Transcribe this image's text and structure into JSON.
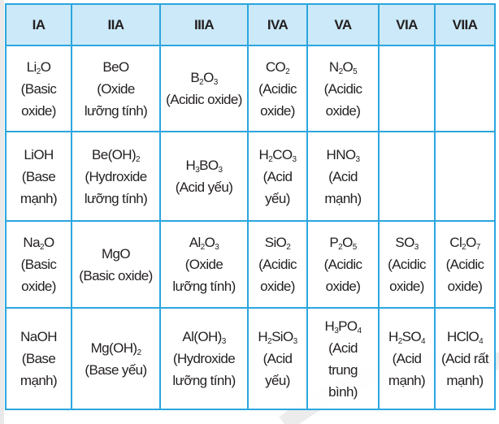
{
  "colors": {
    "border": "#2ba6df",
    "header_bg": "#cbe9f8",
    "text": "#231f20"
  },
  "headers": [
    "IA",
    "IIA",
    "IIIA",
    "IVA",
    "VA",
    "VIA",
    "VIIA"
  ],
  "rows": [
    {
      "cells": [
        {
          "formula": [
            {
              "t": "Li",
              "sub": "2"
            },
            {
              "t": "O",
              "sub": ""
            }
          ],
          "label": [
            "(Basic",
            "oxide)"
          ]
        },
        {
          "formula": [
            {
              "t": "BeO",
              "sub": ""
            }
          ],
          "label": [
            "(Oxide",
            "lưỡng tính)"
          ]
        },
        {
          "formula": [
            {
              "t": "B",
              "sub": "2"
            },
            {
              "t": "O",
              "sub": "3"
            }
          ],
          "label": [
            "(Acidic oxide)"
          ]
        },
        {
          "formula": [
            {
              "t": "CO",
              "sub": "2"
            }
          ],
          "label": [
            "(Acidic",
            "oxide)"
          ]
        },
        {
          "formula": [
            {
              "t": "N",
              "sub": "2"
            },
            {
              "t": "O",
              "sub": "5"
            }
          ],
          "label": [
            "(Acidic",
            "oxide)"
          ]
        },
        {
          "formula": [],
          "label": []
        },
        {
          "formula": [],
          "label": []
        }
      ]
    },
    {
      "cells": [
        {
          "formula": [
            {
              "t": "LiOH",
              "sub": ""
            }
          ],
          "label": [
            "(Base",
            "mạnh)"
          ]
        },
        {
          "formula": [
            {
              "t": "Be(OH)",
              "sub": "2"
            }
          ],
          "label": [
            "(Hydroxide",
            "lưỡng tính)"
          ]
        },
        {
          "formula": [
            {
              "t": "H",
              "sub": "3"
            },
            {
              "t": "BO",
              "sub": "3"
            }
          ],
          "label": [
            "(Acid yếu)"
          ]
        },
        {
          "formula": [
            {
              "t": "H",
              "sub": "2"
            },
            {
              "t": "CO",
              "sub": "3"
            }
          ],
          "label": [
            "(Acid",
            "yếu)"
          ]
        },
        {
          "formula": [
            {
              "t": "HNO",
              "sub": "3"
            }
          ],
          "label": [
            "(Acid",
            "mạnh)"
          ]
        },
        {
          "formula": [],
          "label": []
        },
        {
          "formula": [],
          "label": []
        }
      ]
    },
    {
      "cells": [
        {
          "formula": [
            {
              "t": "Na",
              "sub": "2"
            },
            {
              "t": "O",
              "sub": ""
            }
          ],
          "label": [
            "(Basic",
            "oxide)"
          ]
        },
        {
          "formula": [
            {
              "t": "MgO",
              "sub": ""
            }
          ],
          "label": [
            "(Basic oxide)"
          ]
        },
        {
          "formula": [
            {
              "t": "Al",
              "sub": "2"
            },
            {
              "t": "O",
              "sub": "3"
            }
          ],
          "label": [
            "(Oxide",
            "lưỡng tính)"
          ]
        },
        {
          "formula": [
            {
              "t": "SiO",
              "sub": "2"
            }
          ],
          "label": [
            "(Acidic",
            "oxide)"
          ]
        },
        {
          "formula": [
            {
              "t": "P",
              "sub": "2"
            },
            {
              "t": "O",
              "sub": "5"
            }
          ],
          "label": [
            "(Acidic",
            "oxide)"
          ]
        },
        {
          "formula": [
            {
              "t": "SO",
              "sub": "3"
            }
          ],
          "label": [
            "(Acidic",
            "oxide)"
          ]
        },
        {
          "formula": [
            {
              "t": "Cl",
              "sub": "2"
            },
            {
              "t": "O",
              "sub": "7"
            }
          ],
          "label": [
            "(Acidic",
            "oxide)"
          ]
        }
      ]
    },
    {
      "cells": [
        {
          "formula": [
            {
              "t": "NaOH",
              "sub": ""
            }
          ],
          "label": [
            "(Base",
            "mạnh)"
          ]
        },
        {
          "formula": [
            {
              "t": "Mg(OH)",
              "sub": "2"
            }
          ],
          "label": [
            "(Base yếu)"
          ]
        },
        {
          "formula": [
            {
              "t": "Al(OH)",
              "sub": "3"
            }
          ],
          "label": [
            "(Hydroxide",
            "lưỡng tính)"
          ]
        },
        {
          "formula": [
            {
              "t": "H",
              "sub": "2"
            },
            {
              "t": "SiO",
              "sub": "3"
            }
          ],
          "label": [
            "(Acid",
            "yếu)"
          ]
        },
        {
          "formula": [
            {
              "t": "H",
              "sub": "3"
            },
            {
              "t": "PO",
              "sub": "4"
            }
          ],
          "label": [
            "(Acid",
            "trung",
            "bình)"
          ]
        },
        {
          "formula": [
            {
              "t": "H",
              "sub": "2"
            },
            {
              "t": "SO",
              "sub": "4"
            }
          ],
          "label": [
            "(Acid",
            "mạnh)"
          ]
        },
        {
          "formula": [
            {
              "t": "HClO",
              "sub": "4"
            }
          ],
          "label": [
            "(Acid rất",
            "mạnh)"
          ]
        }
      ]
    }
  ]
}
